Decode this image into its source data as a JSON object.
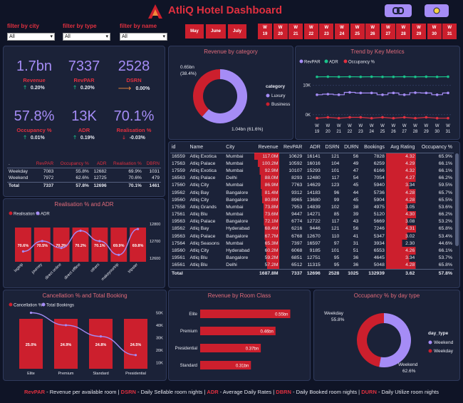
{
  "header": {
    "title": "AtliQ Hotel Dashboard",
    "logo_letter": "A",
    "filters": [
      {
        "label": "filter by city",
        "value": "All"
      },
      {
        "label": "filter by type",
        "value": "All"
      },
      {
        "label": "filter by name",
        "value": "All"
      }
    ],
    "months": [
      "May",
      "June",
      "July"
    ],
    "weeks": [
      [
        "W",
        "19"
      ],
      [
        "W",
        "20"
      ],
      [
        "W",
        "21"
      ],
      [
        "W",
        "22"
      ],
      [
        "W",
        "23"
      ],
      [
        "W",
        "24"
      ],
      [
        "W",
        "25"
      ],
      [
        "W",
        "26"
      ],
      [
        "W",
        "27"
      ],
      [
        "W",
        "28"
      ],
      [
        "W",
        "29"
      ],
      [
        "W",
        "30"
      ],
      [
        "W",
        "31"
      ]
    ],
    "icons": [
      "refresh-icon",
      "theme-toggle-icon"
    ]
  },
  "kpis": [
    {
      "value": "1.7bn",
      "label": "Revenue",
      "change": "0.20%",
      "trend": "up"
    },
    {
      "value": "7337",
      "label": "RevPAR",
      "change": "0.20%",
      "trend": "up"
    },
    {
      "value": "2528",
      "label": "DSRN",
      "change": "0.00%",
      "trend": "right"
    },
    {
      "value": "57.8%",
      "label": "Occupancy %",
      "change": "0.01%",
      "trend": "up"
    },
    {
      "value": "13K",
      "label": "ADR",
      "change": "0.19%",
      "trend": "up"
    },
    {
      "value": "70.1%",
      "label": "Realisation %",
      "change": "-0.03%",
      "trend": "down"
    }
  ],
  "summary_table": {
    "headers": [
      ".",
      "RevPAR",
      "Occupancy %",
      "ADR",
      "Realisation %",
      "DBRN"
    ],
    "rows": [
      [
        "Weekday",
        "7083",
        "55.8%",
        "12682",
        "69.9%",
        "1031"
      ],
      [
        "Weekend",
        "7972",
        "62.6%",
        "12725",
        "70.6%",
        "479"
      ]
    ],
    "total": [
      "Total",
      "7337",
      "57.8%",
      "12696",
      "70.1%",
      "1461"
    ]
  },
  "revenue_by_category": {
    "title": "Revenue by category",
    "legend_title": "category",
    "slices": [
      {
        "name": "Luxury",
        "value": 1.04,
        "label": "1.04bn (61.6%)",
        "color": "#a58cf6"
      },
      {
        "name": "Business",
        "value": 0.65,
        "label": "0.65bn",
        "pct": "(38.4%)",
        "color": "#cc1f2d"
      }
    ]
  },
  "trend": {
    "title": "Trend by Key Metrics",
    "legend": [
      {
        "name": "RevPAR",
        "color": "#a58cf6"
      },
      {
        "name": "ADR",
        "color": "#19c28a"
      },
      {
        "name": "Occupancy %",
        "color": "#e0303f"
      }
    ],
    "y_ticks": [
      "10K",
      "0K"
    ],
    "weeks": [
      "19",
      "20",
      "21",
      "22",
      "23",
      "24",
      "25",
      "26",
      "27",
      "28",
      "29",
      "30",
      "31"
    ],
    "adr": [
      12900,
      12950,
      12900,
      12950,
      12900,
      12950,
      12900,
      12900,
      12950,
      12900,
      12950,
      12900,
      12950
    ],
    "revpar": [
      6800,
      7000,
      6800,
      7600,
      7400,
      7400,
      6800,
      7400,
      6800,
      7500,
      7400,
      6800,
      7400
    ],
    "occupancy": [
      57,
      58,
      57,
      58,
      58,
      57,
      58,
      57,
      58,
      57,
      58,
      57,
      57
    ]
  },
  "hotel_table": {
    "headers": [
      "id",
      "Name",
      "City",
      "Revenue",
      "RevPAR",
      "ADR",
      "DSRN",
      "DURN",
      "Bookings",
      "Avg Rating",
      "Occupancy %"
    ],
    "rows": [
      [
        "16559",
        "Atliq Exotica",
        "Mumbai",
        "117.0M",
        "10629",
        "16141",
        "121",
        "56",
        "7828",
        "4.32",
        "65.9%"
      ],
      [
        "17563",
        "Atliq Palace",
        "Mumbai",
        "100.2M",
        "10592",
        "16016",
        "104",
        "49",
        "6259",
        "4.29",
        "66.1%"
      ],
      [
        "17559",
        "Atliq Exotica",
        "Mumbai",
        "92.9M",
        "10107",
        "15293",
        "101",
        "47",
        "6166",
        "4.32",
        "66.1%"
      ],
      [
        "16563",
        "Atliq Palace",
        "Delhi",
        "88.0M",
        "8293",
        "12480",
        "117",
        "54",
        "7054",
        "4.27",
        "66.2%"
      ],
      [
        "17560",
        "Atliq City",
        "Mumbai",
        "86.9M",
        "7763",
        "14629",
        "123",
        "45",
        "5940",
        "3.34",
        "59.5%"
      ],
      [
        "19562",
        "Atliq Bay",
        "Bangalore",
        "81.4M",
        "9312",
        "14183",
        "96",
        "44",
        "5736",
        "4.28",
        "65.7%"
      ],
      [
        "19560",
        "Atliq City",
        "Bangalore",
        "80.8M",
        "8965",
        "13680",
        "99",
        "45",
        "5904",
        "4.28",
        "65.5%"
      ],
      [
        "17558",
        "Atliq Grands",
        "Mumbai",
        "73.8M",
        "7953",
        "14839",
        "102",
        "38",
        "4975",
        "3.05",
        "53.6%"
      ],
      [
        "17561",
        "Atliq Blu",
        "Mumbai",
        "73.6M",
        "9447",
        "14271",
        "85",
        "39",
        "5120",
        "4.30",
        "66.2%"
      ],
      [
        "19563",
        "Atliq Palace",
        "Bangalore",
        "72.1M",
        "6774",
        "12722",
        "117",
        "43",
        "5669",
        "3.08",
        "53.2%"
      ],
      [
        "18562",
        "Atliq Bay",
        "Hyderabad",
        "68.4M",
        "6216",
        "9446",
        "121",
        "56",
        "7246",
        "4.31",
        "65.8%"
      ],
      [
        "19563",
        "Atliq Palace",
        "Bangalore",
        "67.7M",
        "6768",
        "12670",
        "110",
        "41",
        "5347",
        "3.02",
        "53.4%"
      ],
      [
        "17564",
        "Atliq Seasons",
        "Mumbai",
        "65.3M",
        "7397",
        "16597",
        "97",
        "31",
        "3934",
        "2.30",
        "44.6%"
      ],
      [
        "18560",
        "Atliq City",
        "Hyderabad",
        "60.2M",
        "6068",
        "9185",
        "101",
        "51",
        "6553",
        "4.26",
        "66.1%"
      ],
      [
        "19561",
        "Atliq Blu",
        "Bangalore",
        "59.2M",
        "6851",
        "12751",
        "95",
        "36",
        "4645",
        "3.34",
        "53.7%"
      ],
      [
        "16561",
        "Atliq Blu",
        "Delhi",
        "57.2M",
        "6512",
        "11315",
        "95",
        "36",
        "5048",
        "4.28",
        "65.8%"
      ]
    ],
    "total": [
      "Total",
      "",
      "",
      "1687.8M",
      "7337",
      "12696",
      "2528",
      "1025",
      "132939",
      "3.62",
      "57.8%"
    ]
  },
  "realisation_adr": {
    "title": "Realisation % and ADR",
    "legend": [
      {
        "name": "Realisation %",
        "color": "#cc1f2d"
      },
      {
        "name": "ADR",
        "color": "#a58cf6"
      }
    ],
    "categories": [
      "logtrip",
      "journey",
      "direct online",
      "direct offline",
      "others",
      "makeyourtrip",
      "tripster"
    ],
    "realisation_labels": [
      "70.6%",
      "70.5%",
      "70.3%",
      "70.2%",
      "70.1%",
      "69.9%",
      "69.8%"
    ],
    "adr": [
      12640,
      12700,
      12660,
      12760,
      12700,
      12620,
      12770
    ],
    "y_ticks": [
      "12800",
      "12700",
      "12600"
    ]
  },
  "cancellation": {
    "title": "Cancellation % and Total Booking",
    "legend": [
      {
        "name": "Cancellation %",
        "color": "#cc1f2d"
      },
      {
        "name": "Total Bookings",
        "color": "#a58cf6"
      }
    ],
    "categories": [
      "Elite",
      "Premium",
      "Standard",
      "Presidential"
    ],
    "cancel_labels": [
      "25.0%",
      "24.9%",
      "24.8%",
      "24.5%"
    ],
    "bookings": [
      50000,
      40000,
      31000,
      16000
    ],
    "y_ticks": [
      "50K",
      "40K",
      "30K",
      "20K",
      "10K"
    ]
  },
  "room_class": {
    "title": "Revenue by Room Class",
    "categories": [
      "Elite",
      "Premium",
      "Presidential",
      "Standard"
    ],
    "values": [
      0.55,
      0.46,
      0.37,
      0.31
    ],
    "labels": [
      "0.55bn",
      "0.46bn",
      "0.37bn",
      "0.31bn"
    ]
  },
  "occupancy_day": {
    "title": "Occupancy % by day type",
    "legend_title": "day_type",
    "slices": [
      {
        "name": "Weekend",
        "value": 62.6,
        "label": "Weekend",
        "pct": "62.6%",
        "color": "#a58cf6"
      },
      {
        "name": "Weekday",
        "value": 55.8,
        "label": "Weekday",
        "pct": "55.8%",
        "color": "#cc1f2d"
      }
    ]
  },
  "footer": [
    {
      "abbr": "RevPAR",
      "text": " - Revenue per available room | "
    },
    {
      "abbr": "DSRN",
      "text": " - Daily Sellable room nights | "
    },
    {
      "abbr": "ADR",
      "text": " - Average Daily Rates | "
    },
    {
      "abbr": "DBRN",
      "text": " - Daily Booked room nights | "
    },
    {
      "abbr": "DURN",
      "text": " - Daily Utilize room nights"
    }
  ]
}
